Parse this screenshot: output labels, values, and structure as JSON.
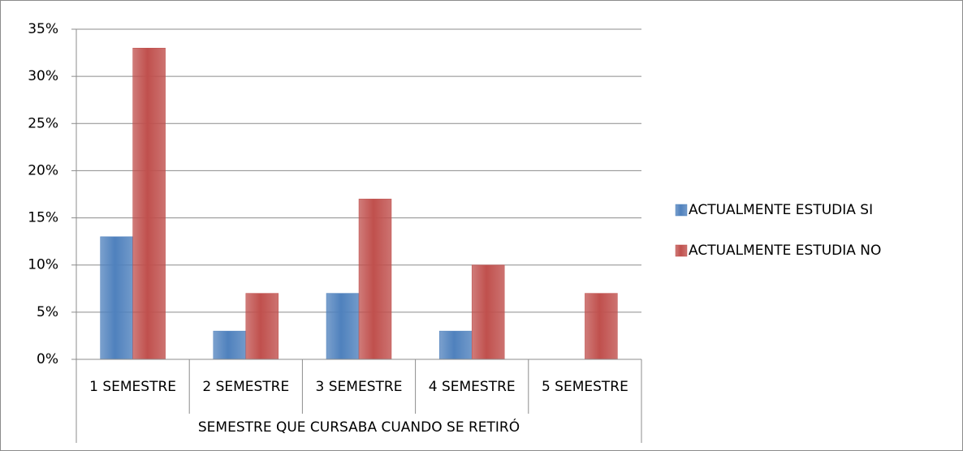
{
  "chart_data": {
    "type": "bar",
    "x_label": "SEMESTRE QUE CURSABA CUANDO SE RETIRÓ",
    "categories": [
      "1 SEMESTRE",
      "2 SEMESTRE",
      "3 SEMESTRE",
      "4 SEMESTRE",
      "5 SEMESTRE"
    ],
    "series": [
      {
        "name": "ACTUALMENTE ESTUDIA SI",
        "color": "#4f81bd",
        "values": [
          13,
          3,
          7,
          3,
          0
        ]
      },
      {
        "name": "ACTUALMENTE ESTUDIA NO",
        "color": "#c0504d",
        "values": [
          33,
          7,
          17,
          10,
          7
        ]
      }
    ],
    "ylim": [
      0,
      35
    ],
    "yticks": [
      {
        "value": 0,
        "label": "0%"
      },
      {
        "value": 5,
        "label": "5%"
      },
      {
        "value": 10,
        "label": "10%"
      },
      {
        "value": 15,
        "label": "15%"
      },
      {
        "value": 20,
        "label": "20%"
      },
      {
        "value": 25,
        "label": "25%"
      },
      {
        "value": 30,
        "label": "30%"
      },
      {
        "value": 35,
        "label": "35%"
      }
    ],
    "grid": true,
    "legend": "right"
  }
}
